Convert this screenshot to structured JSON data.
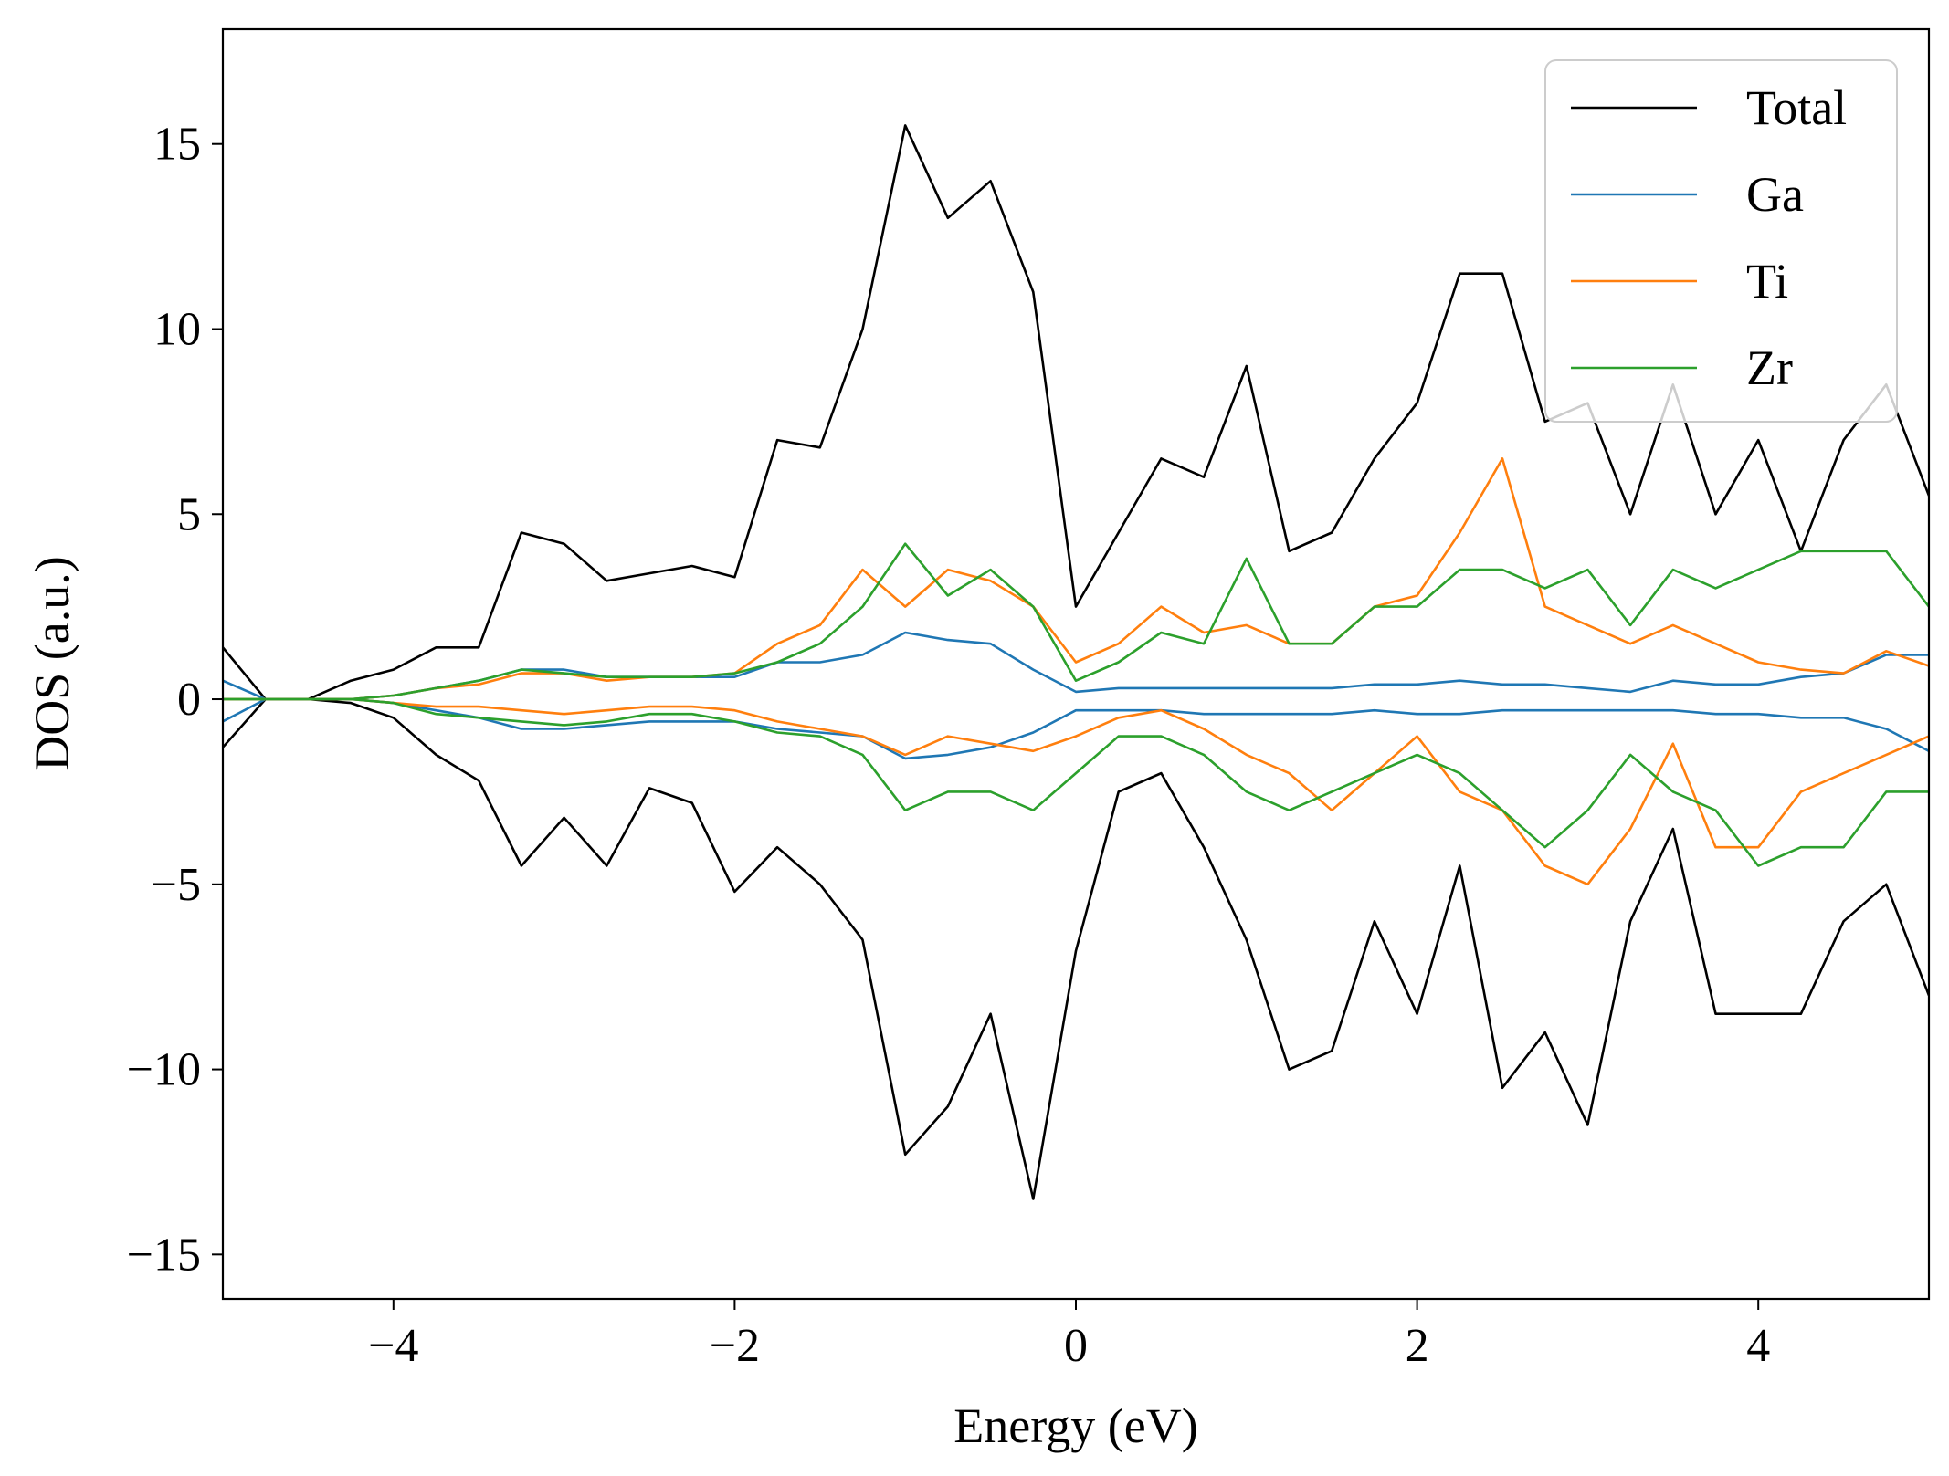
{
  "chart_data": {
    "type": "line",
    "title": "",
    "xlabel": "Energy (eV)",
    "ylabel": "DOS (a.u.)",
    "xlim": [
      -5,
      5
    ],
    "ylim": [
      -16.2,
      18.1
    ],
    "xticks": [
      -4,
      -2,
      0,
      2,
      4
    ],
    "xtick_labels": [
      "−4",
      "−2",
      "0",
      "2",
      "4"
    ],
    "yticks": [
      -15,
      -10,
      -5,
      0,
      5,
      10,
      15
    ],
    "ytick_labels": [
      "−15",
      "−10",
      "−5",
      "0",
      "5",
      "10",
      "15"
    ],
    "grid": false,
    "legend_position": "top-right",
    "x": [
      -5.0,
      -4.75,
      -4.5,
      -4.25,
      -4.0,
      -3.75,
      -3.5,
      -3.25,
      -3.0,
      -2.75,
      -2.5,
      -2.25,
      -2.0,
      -1.75,
      -1.5,
      -1.25,
      -1.0,
      -0.75,
      -0.5,
      -0.25,
      0.0,
      0.25,
      0.5,
      0.75,
      1.0,
      1.25,
      1.5,
      1.75,
      2.0,
      2.25,
      2.5,
      2.75,
      3.0,
      3.25,
      3.5,
      3.75,
      4.0,
      4.25,
      4.5,
      4.75,
      5.0
    ],
    "series": [
      {
        "name": "Total",
        "color": "#000000",
        "up": [
          1.4,
          0.0,
          0.0,
          0.5,
          0.8,
          1.4,
          1.4,
          4.5,
          4.2,
          3.2,
          3.4,
          3.6,
          3.3,
          7.0,
          6.8,
          10.0,
          15.5,
          13.0,
          14.0,
          11.0,
          2.5,
          4.5,
          6.5,
          6.0,
          9.0,
          4.0,
          4.5,
          6.5,
          8.0,
          11.5,
          11.5,
          7.5,
          8.0,
          5.0,
          8.5,
          5.0,
          7.0,
          4.0,
          7.0,
          8.5,
          5.5
        ],
        "down": [
          -1.3,
          0.0,
          0.0,
          -0.1,
          -0.5,
          -1.5,
          -2.2,
          -4.5,
          -3.2,
          -4.5,
          -2.4,
          -2.8,
          -5.2,
          -4.0,
          -5.0,
          -6.5,
          -12.3,
          -11.0,
          -8.5,
          -13.5,
          -6.8,
          -2.5,
          -2.0,
          -4.0,
          -6.5,
          -10.0,
          -9.5,
          -6.0,
          -8.5,
          -4.5,
          -10.5,
          -9.0,
          -11.5,
          -6.0,
          -3.5,
          -8.5,
          -8.5,
          -8.5,
          -6.0,
          -5.0,
          -8.0
        ]
      },
      {
        "name": "Ga",
        "color": "#1f77b4",
        "up": [
          0.5,
          0.0,
          0.0,
          0.0,
          0.1,
          0.3,
          0.5,
          0.8,
          0.8,
          0.6,
          0.6,
          0.6,
          0.6,
          1.0,
          1.0,
          1.2,
          1.8,
          1.6,
          1.5,
          0.8,
          0.2,
          0.3,
          0.3,
          0.3,
          0.3,
          0.3,
          0.3,
          0.4,
          0.4,
          0.5,
          0.4,
          0.4,
          0.3,
          0.2,
          0.5,
          0.4,
          0.4,
          0.6,
          0.7,
          1.2,
          1.2
        ],
        "down": [
          -0.6,
          0.0,
          0.0,
          0.0,
          -0.1,
          -0.3,
          -0.5,
          -0.8,
          -0.8,
          -0.7,
          -0.6,
          -0.6,
          -0.6,
          -0.8,
          -0.9,
          -1.0,
          -1.6,
          -1.5,
          -1.3,
          -0.9,
          -0.3,
          -0.3,
          -0.3,
          -0.4,
          -0.4,
          -0.4,
          -0.4,
          -0.3,
          -0.4,
          -0.4,
          -0.3,
          -0.3,
          -0.3,
          -0.3,
          -0.3,
          -0.4,
          -0.4,
          -0.5,
          -0.5,
          -0.8,
          -1.4
        ]
      },
      {
        "name": "Ti",
        "color": "#ff7f0e",
        "up": [
          0.0,
          0.0,
          0.0,
          0.0,
          0.1,
          0.3,
          0.4,
          0.7,
          0.7,
          0.5,
          0.6,
          0.6,
          0.7,
          1.5,
          2.0,
          3.5,
          2.5,
          3.5,
          3.2,
          2.5,
          1.0,
          1.5,
          2.5,
          1.8,
          2.0,
          1.5,
          1.5,
          2.5,
          2.8,
          4.5,
          6.5,
          2.5,
          2.0,
          1.5,
          2.0,
          1.5,
          1.0,
          0.8,
          0.7,
          1.3,
          0.9
        ],
        "down": [
          0.0,
          0.0,
          0.0,
          0.0,
          -0.1,
          -0.2,
          -0.2,
          -0.3,
          -0.4,
          -0.3,
          -0.2,
          -0.2,
          -0.3,
          -0.6,
          -0.8,
          -1.0,
          -1.5,
          -1.0,
          -1.2,
          -1.4,
          -1.0,
          -0.5,
          -0.3,
          -0.8,
          -1.5,
          -2.0,
          -3.0,
          -2.0,
          -1.0,
          -2.5,
          -3.0,
          -4.5,
          -5.0,
          -3.5,
          -1.2,
          -4.0,
          -4.0,
          -2.5,
          -2.0,
          -1.5,
          -1.0
        ]
      },
      {
        "name": "Zr",
        "color": "#2ca02c",
        "up": [
          0.0,
          0.0,
          0.0,
          0.0,
          0.1,
          0.3,
          0.5,
          0.8,
          0.7,
          0.6,
          0.6,
          0.6,
          0.7,
          1.0,
          1.5,
          2.5,
          4.2,
          2.8,
          3.5,
          2.5,
          0.5,
          1.0,
          1.8,
          1.5,
          3.8,
          1.5,
          1.5,
          2.5,
          2.5,
          3.5,
          3.5,
          3.0,
          3.5,
          2.0,
          3.5,
          3.0,
          3.5,
          4.0,
          4.0,
          4.0,
          2.5
        ],
        "down": [
          0.0,
          0.0,
          0.0,
          0.0,
          -0.1,
          -0.4,
          -0.5,
          -0.6,
          -0.7,
          -0.6,
          -0.4,
          -0.4,
          -0.6,
          -0.9,
          -1.0,
          -1.5,
          -3.0,
          -2.5,
          -2.5,
          -3.0,
          -2.0,
          -1.0,
          -1.0,
          -1.5,
          -2.5,
          -3.0,
          -2.5,
          -2.0,
          -1.5,
          -2.0,
          -3.0,
          -4.0,
          -3.0,
          -1.5,
          -2.5,
          -3.0,
          -4.5,
          -4.0,
          -4.0,
          -2.5,
          -2.5
        ]
      }
    ]
  }
}
